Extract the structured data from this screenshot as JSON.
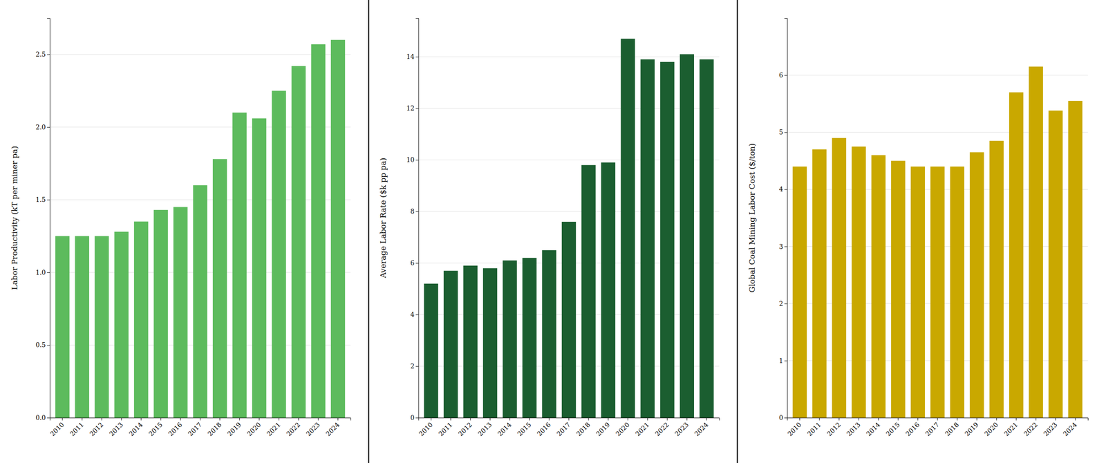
{
  "chart_data": [
    {
      "type": "bar",
      "categories": [
        "2010",
        "2011",
        "2012",
        "2013",
        "2014",
        "2015",
        "2016",
        "2017",
        "2018",
        "2019",
        "2020",
        "2021",
        "2022",
        "2023",
        "2024"
      ],
      "values": [
        1.25,
        1.25,
        1.25,
        1.28,
        1.35,
        1.43,
        1.45,
        1.6,
        1.78,
        2.1,
        2.06,
        2.25,
        2.42,
        2.57,
        2.6
      ],
      "ylabel": "Labor Productivity (kT per miner pa)",
      "ylim": [
        0,
        2.75
      ],
      "yticks": [
        {
          "value": 0.0,
          "label": "0.0"
        },
        0.5,
        {
          "value": 1.0,
          "label": "1.0"
        },
        1.5,
        {
          "value": 2.0,
          "label": "2.0"
        },
        2.5
      ],
      "color": "#5dbb5d",
      "grid": true
    },
    {
      "type": "bar",
      "categories": [
        "2010",
        "2011",
        "2012",
        "2013",
        "2014",
        "2015",
        "2016",
        "2017",
        "2018",
        "2019",
        "2020",
        "2021",
        "2022",
        "2023",
        "2024"
      ],
      "values": [
        5.2,
        5.7,
        5.9,
        5.8,
        6.1,
        6.2,
        6.5,
        7.6,
        9.8,
        9.9,
        14.7,
        13.9,
        13.8,
        14.1,
        13.9
      ],
      "ylabel": "Average Labor Rate  ($k pp pa)",
      "ylim": [
        0,
        15.5
      ],
      "yticks": [
        0,
        2,
        4,
        6,
        8,
        10,
        12,
        14
      ],
      "color": "#1b5e30",
      "grid": true
    },
    {
      "type": "bar",
      "categories": [
        "2010",
        "2011",
        "2012",
        "2013",
        "2014",
        "2015",
        "2016",
        "2017",
        "2018",
        "2019",
        "2020",
        "2021",
        "2022",
        "2023",
        "2024"
      ],
      "values": [
        4.4,
        4.7,
        4.9,
        4.75,
        4.6,
        4.5,
        4.4,
        4.4,
        4.4,
        4.65,
        4.85,
        5.7,
        6.15,
        5.38,
        5.55
      ],
      "ylabel": "Global Coal Mining Labor Cost ($/ton)",
      "ylim": [
        0,
        7
      ],
      "yticks": [
        0,
        1,
        2,
        3,
        4,
        5,
        6
      ],
      "color": "#c9a800",
      "grid": true
    }
  ]
}
